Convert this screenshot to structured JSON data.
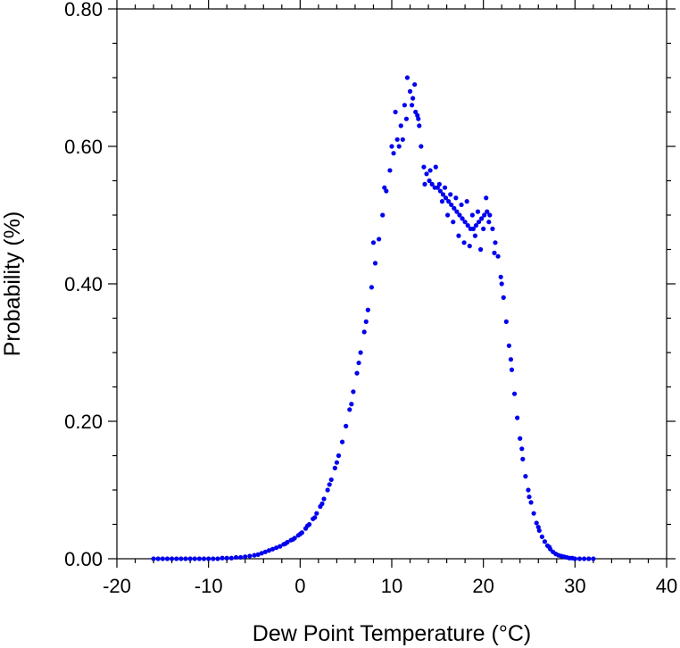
{
  "chart_data": {
    "type": "scatter",
    "title": "",
    "xlabel": "Dew Point Temperature (°C)",
    "ylabel": "Probability (%)",
    "xlim": [
      -20,
      40
    ],
    "ylim": [
      0,
      0.8
    ],
    "x_ticks": [
      "-20",
      "-10",
      "0",
      "10",
      "20",
      "30",
      "40"
    ],
    "y_ticks": [
      "0.00",
      "0.20",
      "0.40",
      "0.60",
      "0.80"
    ],
    "grid": false,
    "legend": "none",
    "marker_color": "#0000ee",
    "series": [
      {
        "points": [
          [
            -16,
            0.0
          ],
          [
            -15.5,
            0.0
          ],
          [
            -15,
            0.0
          ],
          [
            -14.5,
            0.0
          ],
          [
            -14,
            0.0
          ],
          [
            -13.5,
            0.0
          ],
          [
            -13,
            0.0
          ],
          [
            -12.5,
            0.0
          ],
          [
            -12,
            0.0
          ],
          [
            -11.5,
            0.0
          ],
          [
            -11,
            0.0
          ],
          [
            -10.5,
            0.0
          ],
          [
            -10,
            0.0
          ],
          [
            -9.5,
            0.0
          ],
          [
            -9,
            0.0
          ],
          [
            -8.5,
            0.001
          ],
          [
            -8,
            0.001
          ],
          [
            -7.5,
            0.001
          ],
          [
            -7,
            0.002
          ],
          [
            -6.5,
            0.002
          ],
          [
            -6,
            0.003
          ],
          [
            -5.5,
            0.004
          ],
          [
            -5,
            0.005
          ],
          [
            -4.6,
            0.006
          ],
          [
            -4.2,
            0.008
          ],
          [
            -3.8,
            0.01
          ],
          [
            -3.4,
            0.012
          ],
          [
            -3.0,
            0.014
          ],
          [
            -2.6,
            0.016
          ],
          [
            -2.2,
            0.018
          ],
          [
            -1.8,
            0.021
          ],
          [
            -1.4,
            0.024
          ],
          [
            -1.0,
            0.027
          ],
          [
            -0.6,
            0.03
          ],
          [
            -0.2,
            0.034
          ],
          [
            0.2,
            0.038
          ],
          [
            0.6,
            0.044
          ],
          [
            1.0,
            0.05
          ],
          [
            1.4,
            0.058
          ],
          [
            1.8,
            0.066
          ],
          [
            2.2,
            0.076
          ],
          [
            2.6,
            0.087
          ],
          [
            3.0,
            0.1
          ],
          [
            3.4,
            0.115
          ],
          [
            3.8,
            0.132
          ],
          [
            4.2,
            0.15
          ],
          [
            4.6,
            0.17
          ],
          [
            5.0,
            0.193
          ],
          [
            5.4,
            0.217
          ],
          [
            5.8,
            0.243
          ],
          [
            6.2,
            0.27
          ],
          [
            6.6,
            0.3
          ],
          [
            7.0,
            0.33
          ],
          [
            7.4,
            0.362
          ],
          [
            7.8,
            0.395
          ],
          [
            8.2,
            0.43
          ],
          [
            8.6,
            0.465
          ],
          [
            9.0,
            0.5
          ],
          [
            9.4,
            0.535
          ],
          [
            9.8,
            0.565
          ],
          [
            10.2,
            0.59
          ],
          [
            10.6,
            0.61
          ],
          [
            11.0,
            0.63
          ],
          [
            11.4,
            0.66
          ],
          [
            11.7,
            0.7
          ],
          [
            12.0,
            0.68
          ],
          [
            12.3,
            0.67
          ],
          [
            12.6,
            0.65
          ],
          [
            12.9,
            0.64
          ],
          [
            13.2,
            0.6
          ],
          [
            13.5,
            0.57
          ],
          [
            13.8,
            0.56
          ],
          [
            14.1,
            0.55
          ],
          [
            14.4,
            0.545
          ],
          [
            14.7,
            0.54
          ],
          [
            15.0,
            0.54
          ],
          [
            15.3,
            0.535
          ],
          [
            15.6,
            0.53
          ],
          [
            15.9,
            0.525
          ],
          [
            16.2,
            0.52
          ],
          [
            16.5,
            0.515
          ],
          [
            16.8,
            0.51
          ],
          [
            17.1,
            0.505
          ],
          [
            17.4,
            0.5
          ],
          [
            17.7,
            0.495
          ],
          [
            18.0,
            0.49
          ],
          [
            18.3,
            0.485
          ],
          [
            18.6,
            0.48
          ],
          [
            18.9,
            0.48
          ],
          [
            19.2,
            0.485
          ],
          [
            19.5,
            0.49
          ],
          [
            19.8,
            0.495
          ],
          [
            20.1,
            0.5
          ],
          [
            20.4,
            0.505
          ],
          [
            20.7,
            0.5
          ],
          [
            21.0,
            0.48
          ],
          [
            21.3,
            0.46
          ],
          [
            21.6,
            0.44
          ],
          [
            21.9,
            0.41
          ],
          [
            22.2,
            0.38
          ],
          [
            22.5,
            0.345
          ],
          [
            22.8,
            0.31
          ],
          [
            23.1,
            0.275
          ],
          [
            23.4,
            0.24
          ],
          [
            23.7,
            0.205
          ],
          [
            24.0,
            0.175
          ],
          [
            24.3,
            0.145
          ],
          [
            24.6,
            0.12
          ],
          [
            24.9,
            0.1
          ],
          [
            25.2,
            0.082
          ],
          [
            25.5,
            0.066
          ],
          [
            25.8,
            0.052
          ],
          [
            26.1,
            0.041
          ],
          [
            26.4,
            0.032
          ],
          [
            26.7,
            0.025
          ],
          [
            27.0,
            0.019
          ],
          [
            27.3,
            0.014
          ],
          [
            27.6,
            0.01
          ],
          [
            27.9,
            0.007
          ],
          [
            28.2,
            0.005
          ],
          [
            28.5,
            0.004
          ],
          [
            28.8,
            0.003
          ],
          [
            29.1,
            0.002
          ],
          [
            29.4,
            0.001
          ],
          [
            29.7,
            0.001
          ],
          [
            30.0,
            0.0
          ],
          [
            30.5,
            0.0
          ],
          [
            31.0,
            0.0
          ],
          [
            31.5,
            0.0
          ],
          [
            32.0,
            0.0
          ],
          [
            8.0,
            0.46
          ],
          [
            9.2,
            0.54
          ],
          [
            10.0,
            0.6
          ],
          [
            10.4,
            0.65
          ],
          [
            10.8,
            0.6
          ],
          [
            11.2,
            0.61
          ],
          [
            11.6,
            0.64
          ],
          [
            12.2,
            0.66
          ],
          [
            12.5,
            0.69
          ],
          [
            12.8,
            0.645
          ],
          [
            13.0,
            0.63
          ],
          [
            13.6,
            0.545
          ],
          [
            14.2,
            0.565
          ],
          [
            14.8,
            0.57
          ],
          [
            15.2,
            0.545
          ],
          [
            15.5,
            0.52
          ],
          [
            15.8,
            0.54
          ],
          [
            16.1,
            0.5
          ],
          [
            16.4,
            0.53
          ],
          [
            16.7,
            0.49
          ],
          [
            17.0,
            0.525
          ],
          [
            17.3,
            0.47
          ],
          [
            17.6,
            0.515
          ],
          [
            17.9,
            0.46
          ],
          [
            18.2,
            0.52
          ],
          [
            18.5,
            0.455
          ],
          [
            18.8,
            0.5
          ],
          [
            19.1,
            0.47
          ],
          [
            19.4,
            0.505
          ],
          [
            19.7,
            0.45
          ],
          [
            20.0,
            0.48
          ],
          [
            20.3,
            0.525
          ],
          [
            20.6,
            0.49
          ],
          [
            21.2,
            0.445
          ],
          [
            5.6,
            0.225
          ],
          [
            6.4,
            0.285
          ],
          [
            7.2,
            0.345
          ],
          [
            4.0,
            0.14
          ],
          [
            3.2,
            0.108
          ],
          [
            2.4,
            0.08
          ],
          [
            1.6,
            0.06
          ],
          [
            0.8,
            0.048
          ],
          [
            0.0,
            0.036
          ],
          [
            -0.8,
            0.028
          ],
          [
            -1.6,
            0.022
          ],
          [
            22.0,
            0.4
          ],
          [
            23.0,
            0.29
          ],
          [
            24.2,
            0.16
          ],
          [
            25.0,
            0.09
          ],
          [
            26.0,
            0.046
          ],
          [
            27.2,
            0.017
          ]
        ]
      }
    ]
  }
}
